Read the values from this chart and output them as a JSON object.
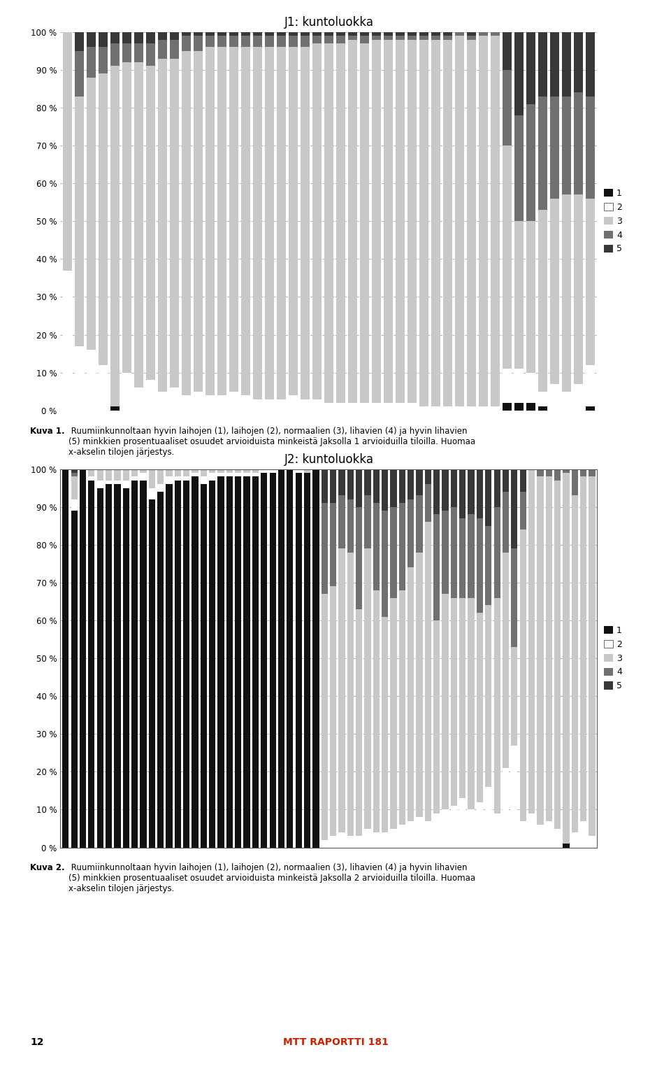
{
  "chart1": {
    "title": "J1: kuntoluokka",
    "colors": [
      "#111111",
      "#ffffff",
      "#c8c8c8",
      "#707070",
      "#383838"
    ],
    "legend_labels": [
      "1",
      "2",
      "3",
      "4",
      "5"
    ],
    "bars": [
      [
        0,
        37,
        63,
        0,
        0
      ],
      [
        0,
        17,
        66,
        12,
        5
      ],
      [
        0,
        16,
        72,
        8,
        4
      ],
      [
        0,
        12,
        77,
        7,
        4
      ],
      [
        1,
        0,
        90,
        6,
        3
      ],
      [
        0,
        10,
        82,
        5,
        3
      ],
      [
        0,
        6,
        86,
        5,
        3
      ],
      [
        0,
        8,
        83,
        6,
        3
      ],
      [
        0,
        5,
        88,
        5,
        2
      ],
      [
        0,
        6,
        87,
        5,
        2
      ],
      [
        0,
        4,
        91,
        4,
        1
      ],
      [
        0,
        5,
        90,
        4,
        1
      ],
      [
        0,
        4,
        92,
        3,
        1
      ],
      [
        0,
        4,
        92,
        3,
        1
      ],
      [
        0,
        5,
        91,
        3,
        1
      ],
      [
        0,
        4,
        92,
        3,
        1
      ],
      [
        0,
        3,
        93,
        3,
        1
      ],
      [
        0,
        3,
        93,
        3,
        1
      ],
      [
        0,
        3,
        93,
        3,
        1
      ],
      [
        0,
        4,
        92,
        3,
        1
      ],
      [
        0,
        3,
        93,
        3,
        1
      ],
      [
        0,
        3,
        94,
        2,
        1
      ],
      [
        0,
        2,
        95,
        2,
        1
      ],
      [
        0,
        2,
        95,
        2,
        1
      ],
      [
        0,
        2,
        96,
        1,
        1
      ],
      [
        0,
        2,
        95,
        2,
        1
      ],
      [
        0,
        2,
        96,
        1,
        1
      ],
      [
        0,
        2,
        96,
        1,
        1
      ],
      [
        0,
        2,
        96,
        1,
        1
      ],
      [
        0,
        2,
        96,
        1,
        1
      ],
      [
        0,
        1,
        97,
        1,
        1
      ],
      [
        0,
        1,
        97,
        1,
        1
      ],
      [
        0,
        1,
        97,
        1,
        1
      ],
      [
        0,
        1,
        98,
        1,
        0
      ],
      [
        0,
        1,
        97,
        1,
        1
      ],
      [
        0,
        1,
        98,
        1,
        0
      ],
      [
        0,
        1,
        98,
        1,
        0
      ],
      [
        2,
        9,
        59,
        20,
        10
      ],
      [
        2,
        9,
        39,
        28,
        22
      ],
      [
        2,
        8,
        40,
        31,
        19
      ],
      [
        1,
        4,
        48,
        30,
        17
      ],
      [
        0,
        7,
        49,
        27,
        17
      ],
      [
        0,
        5,
        52,
        26,
        17
      ],
      [
        0,
        7,
        50,
        27,
        16
      ],
      [
        1,
        11,
        44,
        27,
        17
      ]
    ]
  },
  "chart2": {
    "title": "J2: kuntoluokka",
    "colors": [
      "#111111",
      "#ffffff",
      "#c8c8c8",
      "#707070",
      "#383838"
    ],
    "legend_labels": [
      "1",
      "2",
      "3",
      "4",
      "5"
    ],
    "bars": [
      [
        100,
        0,
        0,
        0,
        0
      ],
      [
        89,
        3,
        6,
        1,
        1
      ],
      [
        100,
        0,
        0,
        0,
        0
      ],
      [
        97,
        1,
        2,
        0,
        0
      ],
      [
        95,
        2,
        3,
        0,
        0
      ],
      [
        96,
        1,
        3,
        0,
        0
      ],
      [
        96,
        1,
        3,
        0,
        0
      ],
      [
        95,
        2,
        3,
        0,
        0
      ],
      [
        97,
        1,
        2,
        0,
        0
      ],
      [
        97,
        2,
        1,
        0,
        0
      ],
      [
        92,
        3,
        5,
        0,
        0
      ],
      [
        94,
        2,
        4,
        0,
        0
      ],
      [
        96,
        2,
        2,
        0,
        0
      ],
      [
        97,
        1,
        2,
        0,
        0
      ],
      [
        97,
        1,
        2,
        0,
        0
      ],
      [
        98,
        1,
        1,
        0,
        0
      ],
      [
        96,
        2,
        2,
        0,
        0
      ],
      [
        97,
        2,
        1,
        0,
        0
      ],
      [
        98,
        1,
        1,
        0,
        0
      ],
      [
        98,
        1,
        1,
        0,
        0
      ],
      [
        98,
        1,
        1,
        0,
        0
      ],
      [
        98,
        1,
        1,
        0,
        0
      ],
      [
        98,
        1,
        1,
        0,
        0
      ],
      [
        99,
        1,
        0,
        0,
        0
      ],
      [
        99,
        1,
        0,
        0,
        0
      ],
      [
        100,
        0,
        0,
        0,
        0
      ],
      [
        100,
        0,
        0,
        0,
        0
      ],
      [
        99,
        1,
        0,
        0,
        0
      ],
      [
        99,
        0,
        1,
        0,
        0
      ],
      [
        100,
        0,
        0,
        0,
        0
      ],
      [
        0,
        2,
        65,
        24,
        9
      ],
      [
        0,
        3,
        66,
        22,
        9
      ],
      [
        0,
        4,
        75,
        14,
        7
      ],
      [
        0,
        3,
        75,
        14,
        8
      ],
      [
        0,
        3,
        60,
        27,
        10
      ],
      [
        0,
        5,
        74,
        14,
        7
      ],
      [
        0,
        4,
        64,
        23,
        9
      ],
      [
        0,
        4,
        57,
        28,
        11
      ],
      [
        0,
        5,
        61,
        24,
        10
      ],
      [
        0,
        6,
        62,
        23,
        9
      ],
      [
        0,
        7,
        67,
        18,
        8
      ],
      [
        0,
        8,
        70,
        15,
        7
      ],
      [
        0,
        7,
        79,
        10,
        4
      ],
      [
        0,
        9,
        51,
        28,
        12
      ],
      [
        0,
        10,
        57,
        22,
        11
      ],
      [
        0,
        11,
        55,
        24,
        10
      ],
      [
        0,
        13,
        53,
        21,
        13
      ],
      [
        0,
        10,
        56,
        22,
        12
      ],
      [
        0,
        12,
        50,
        25,
        13
      ],
      [
        0,
        16,
        48,
        21,
        15
      ],
      [
        0,
        9,
        57,
        24,
        10
      ],
      [
        0,
        21,
        57,
        16,
        6
      ],
      [
        0,
        27,
        26,
        26,
        21
      ],
      [
        0,
        7,
        77,
        10,
        6
      ],
      [
        0,
        9,
        91,
        0,
        0
      ],
      [
        0,
        6,
        92,
        2,
        0
      ],
      [
        0,
        7,
        91,
        2,
        0
      ],
      [
        0,
        5,
        92,
        3,
        0
      ],
      [
        1,
        0,
        98,
        1,
        0
      ],
      [
        0,
        4,
        89,
        7,
        0
      ],
      [
        0,
        7,
        91,
        2,
        0
      ],
      [
        0,
        3,
        95,
        2,
        0
      ]
    ]
  },
  "caption1_bold": "Kuva 1.",
  "caption1_rest": " Ruumiinkunnoltaan hyvin laihojen (1), laihojen (2), normaalien (3), lihavien (4) ja hyvin lihavien\n(5) minkkien prosentuaaliset osuudet arvioiduista minkeistä Jaksolla 1 arvioiduilla tiloilla. Huomaa\nx-akselin tilojen järjestys.",
  "caption2_bold": "Kuva 2.",
  "caption2_rest": " Ruumiinkunnoltaan hyvin laihojen (1), laihojen (2), normaalien (3), lihavien (4) ja hyvin lihavien\n(5) minkkien prosentuaaliset osuudet arvioiduista minkeistä Jaksolla 2 arvioiduilla tiloilla. Huomaa\nx-akselin tilojen järjestys.",
  "page_number": "12",
  "footer_text": "MTT RAPORTTI 181",
  "footer_color": "#cc2200"
}
